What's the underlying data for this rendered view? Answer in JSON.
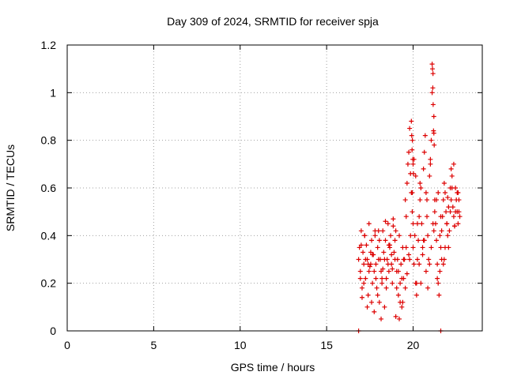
{
  "chart_data": {
    "type": "scatter",
    "title": "Day 309 of 2024, SRMTID for receiver spja",
    "xlabel": "GPS time / hours",
    "ylabel": "SRMTID / TECUs",
    "xlim": [
      0,
      24
    ],
    "ylim": [
      0,
      1.2
    ],
    "x_ticks": [
      0,
      5,
      10,
      15,
      20
    ],
    "x_tick_labels": [
      "0",
      "5",
      "10",
      "15",
      "20"
    ],
    "y_ticks": [
      0,
      0.2,
      0.4,
      0.6,
      0.8,
      1.0,
      1.2
    ],
    "y_tick_labels": [
      "0",
      "0.2",
      "0.4",
      "0.6",
      "0.8",
      "1",
      "1.2"
    ],
    "grid": true,
    "marker_color": "#dd0000",
    "grid_color": "#a0a0a0",
    "series": [
      {
        "name": "SRMTID",
        "marker": "plus",
        "x": [
          16.85,
          16.9,
          16.95,
          17.0,
          17.05,
          17.1,
          17.15,
          17.2,
          17.25,
          17.3,
          17.35,
          17.4,
          17.45,
          17.5,
          17.55,
          17.6,
          17.65,
          17.7,
          17.75,
          17.8,
          17.85,
          17.9,
          17.95,
          18.0,
          18.05,
          18.1,
          18.15,
          18.2,
          18.25,
          18.3,
          18.35,
          18.4,
          18.45,
          18.5,
          18.55,
          18.6,
          18.65,
          18.7,
          18.75,
          18.8,
          18.85,
          18.9,
          18.95,
          19.0,
          19.05,
          19.1,
          19.15,
          19.2,
          19.25,
          19.3,
          19.35,
          19.4,
          19.45,
          19.5,
          19.55,
          19.6,
          19.65,
          19.7,
          19.75,
          19.8,
          19.85,
          19.9,
          19.95,
          20.0,
          20.05,
          20.1,
          20.15,
          20.2,
          20.25,
          20.3,
          20.35,
          20.4,
          20.45,
          20.5,
          20.55,
          20.6,
          20.65,
          20.7,
          20.75,
          20.8,
          20.85,
          20.9,
          20.95,
          21.0,
          21.05,
          21.1,
          21.15,
          21.2,
          21.25,
          21.3,
          21.35,
          21.4,
          21.45,
          21.5,
          21.55,
          21.6,
          21.65,
          21.7,
          21.75,
          21.8,
          21.85,
          21.9,
          21.95,
          22.0,
          22.05,
          22.1,
          22.15,
          22.2,
          22.25,
          22.3,
          22.35,
          22.4,
          22.45,
          22.5,
          22.55,
          22.6,
          22.65,
          22.7,
          16.95,
          17.05,
          17.15,
          17.25,
          17.35,
          17.45,
          17.55,
          17.65,
          17.75,
          17.85,
          17.95,
          18.05,
          18.15,
          18.25,
          18.35,
          18.45,
          18.55,
          18.65,
          18.75,
          18.85,
          18.95,
          19.05,
          19.15,
          19.25,
          19.35,
          19.45,
          19.55,
          19.65,
          19.75,
          19.85,
          19.95,
          20.05,
          20.15,
          20.25,
          20.35,
          20.45,
          20.55,
          20.65,
          20.75,
          20.85,
          20.95,
          21.05,
          21.15,
          21.25,
          21.35,
          21.45,
          21.55,
          21.65,
          21.75,
          21.85,
          21.95,
          22.05,
          22.15,
          22.25,
          22.35,
          22.45,
          22.55,
          22.65,
          17.0,
          17.2,
          17.4,
          17.6,
          17.8,
          18.0,
          18.2,
          18.4,
          18.6,
          18.8,
          19.0,
          19.2,
          19.4,
          19.6,
          19.8,
          20.0,
          20.2,
          20.4,
          20.6,
          20.8,
          21.0,
          21.2,
          21.4,
          21.6,
          21.8,
          22.0,
          22.2,
          22.4,
          22.6,
          19.9,
          19.92,
          19.94,
          19.96,
          19.98,
          20.0,
          20.02,
          21.1,
          21.12,
          21.14,
          21.16,
          21.18,
          21.2,
          21.22,
          16.85,
          21.6
        ],
        "y": [
          0.3,
          0.35,
          0.25,
          0.42,
          0.18,
          0.33,
          0.28,
          0.4,
          0.22,
          0.36,
          0.3,
          0.15,
          0.45,
          0.27,
          0.33,
          0.38,
          0.2,
          0.32,
          0.25,
          0.4,
          0.28,
          0.18,
          0.35,
          0.42,
          0.12,
          0.3,
          0.05,
          0.2,
          0.26,
          0.33,
          0.1,
          0.38,
          0.22,
          0.3,
          0.45,
          0.25,
          0.35,
          0.4,
          0.28,
          0.2,
          0.47,
          0.33,
          0.38,
          0.42,
          0.25,
          0.3,
          0.15,
          0.05,
          0.2,
          0.28,
          0.1,
          0.35,
          0.22,
          0.3,
          0.55,
          0.48,
          0.62,
          0.7,
          0.75,
          0.85,
          0.66,
          0.58,
          0.5,
          0.35,
          0.28,
          0.4,
          0.2,
          0.15,
          0.3,
          0.38,
          0.48,
          0.55,
          0.6,
          0.45,
          0.35,
          0.68,
          0.75,
          0.82,
          0.58,
          0.48,
          0.4,
          0.3,
          0.65,
          0.72,
          0.8,
          1.0,
          1.08,
          0.9,
          0.55,
          0.45,
          0.38,
          0.28,
          0.2,
          0.15,
          0.25,
          0.35,
          0.42,
          0.48,
          0.55,
          0.62,
          0.58,
          0.5,
          0.45,
          0.4,
          0.35,
          0.42,
          0.5,
          0.55,
          0.6,
          0.52,
          0.48,
          0.44,
          0.5,
          0.55,
          0.58,
          0.45,
          0.5,
          0.48,
          0.22,
          0.14,
          0.2,
          0.3,
          0.1,
          0.25,
          0.28,
          0.32,
          0.08,
          0.22,
          0.15,
          0.38,
          0.25,
          0.42,
          0.3,
          0.18,
          0.28,
          0.36,
          0.32,
          0.44,
          0.3,
          0.18,
          0.25,
          0.12,
          0.22,
          0.3,
          0.18,
          0.24,
          0.32,
          0.4,
          0.58,
          0.72,
          0.65,
          0.45,
          0.28,
          0.2,
          0.32,
          0.38,
          0.25,
          0.18,
          0.28,
          0.35,
          0.45,
          0.5,
          0.55,
          0.58,
          0.4,
          0.3,
          0.28,
          0.35,
          0.45,
          0.52,
          0.6,
          0.65,
          0.7,
          0.6,
          0.5,
          0.55,
          0.36,
          0.4,
          0.28,
          0.12,
          0.42,
          0.3,
          0.22,
          0.46,
          0.36,
          0.26,
          0.06,
          0.4,
          0.12,
          0.35,
          0.3,
          0.45,
          0.2,
          0.62,
          0.38,
          0.55,
          0.7,
          0.42,
          0.22,
          0.48,
          0.3,
          0.56,
          0.68,
          0.44,
          0.58,
          0.88,
          0.82,
          0.76,
          0.8,
          0.72,
          0.7,
          0.66,
          1.12,
          1.1,
          1.02,
          0.95,
          0.84,
          0.83,
          0.78,
          0.0,
          0.0
        ]
      }
    ]
  }
}
